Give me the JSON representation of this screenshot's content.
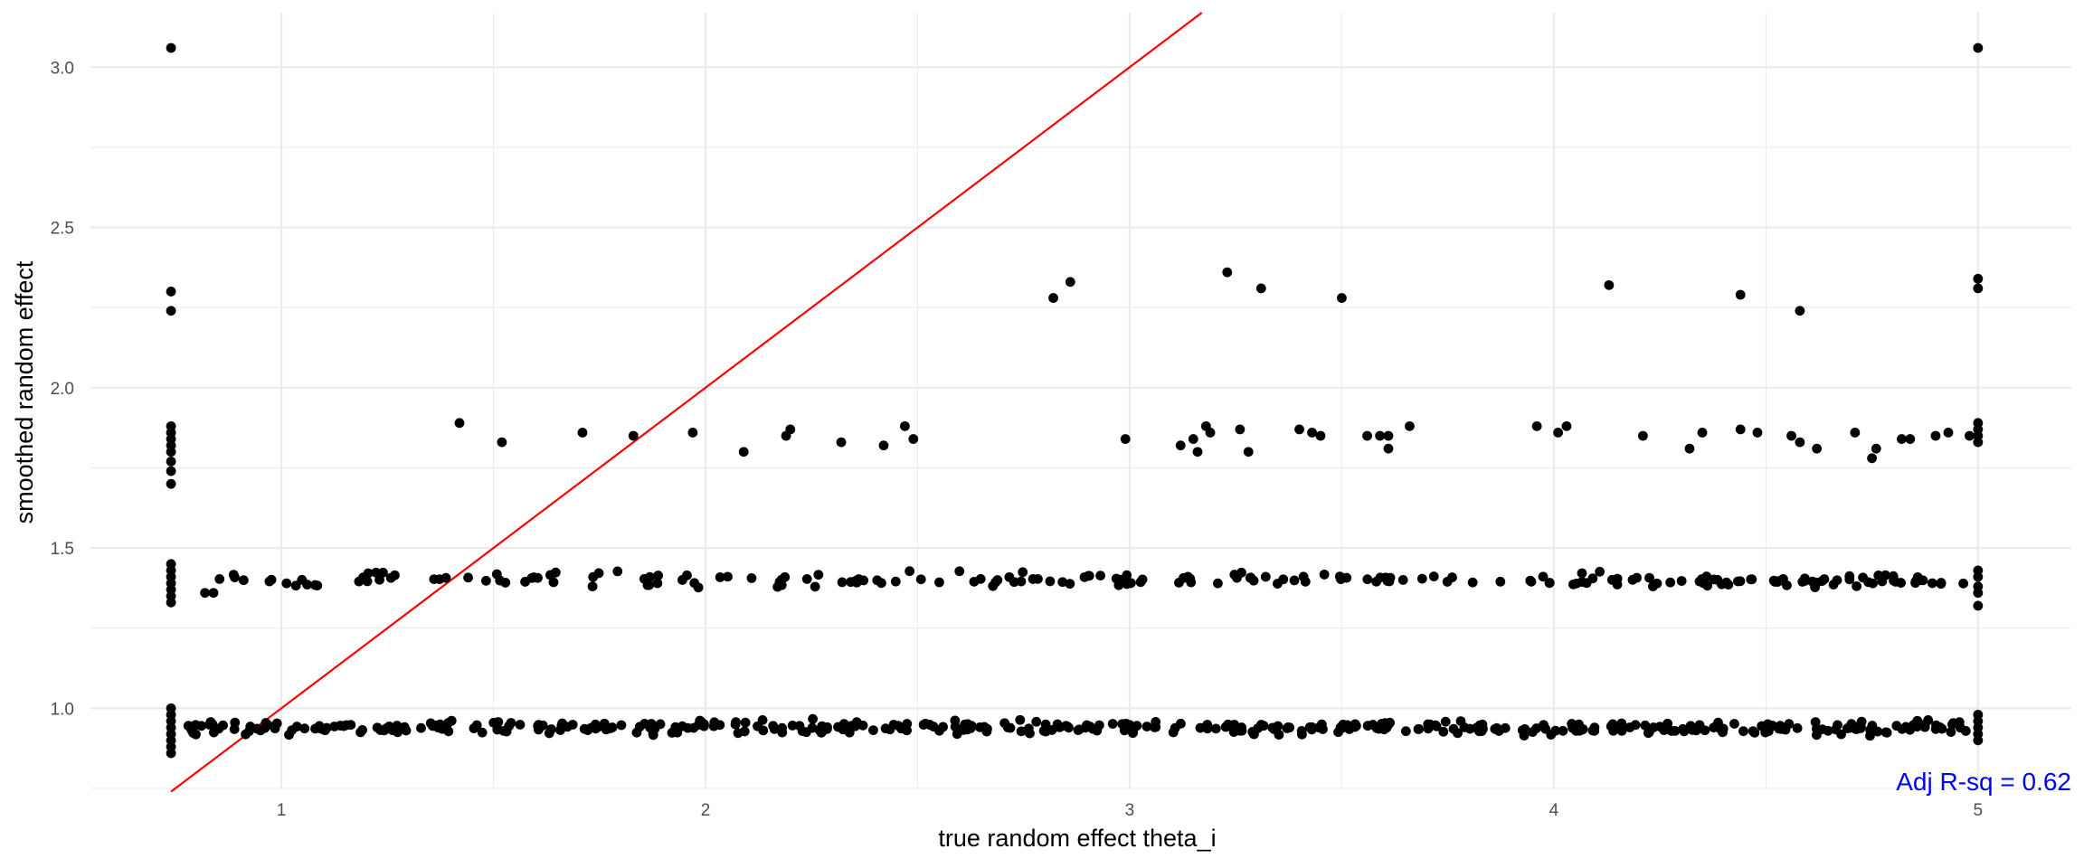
{
  "chart_data": {
    "type": "scatter",
    "title": "",
    "xlabel": "true random effect theta_i",
    "ylabel": "smoothed random effect",
    "xlim": [
      0.55,
      5.22
    ],
    "ylim": [
      0.75,
      3.17
    ],
    "x_ticks": [
      {
        "value": 1,
        "label": "1"
      },
      {
        "value": 2,
        "label": "2"
      },
      {
        "value": 3,
        "label": "3"
      },
      {
        "value": 4,
        "label": "4"
      },
      {
        "value": 5,
        "label": "5"
      }
    ],
    "y_ticks": [
      {
        "value": 1.0,
        "label": "1.0"
      },
      {
        "value": 1.5,
        "label": "1.5"
      },
      {
        "value": 2.0,
        "label": "2.0"
      },
      {
        "value": 2.5,
        "label": "2.5"
      },
      {
        "value": 3.0,
        "label": "3.0"
      }
    ],
    "grid": true,
    "reference_line": {
      "slope": 1,
      "intercept": 0,
      "color": "#ff0000"
    },
    "annotation": {
      "text": "Adj R-sq = 0.62",
      "color": "#0000ff",
      "placement": "bottom-right"
    },
    "point_color": "#000000",
    "clusters": [
      {
        "level": 0.94,
        "spread": 0.02,
        "x_start": 0.78,
        "x_end": 4.98,
        "count": 430
      },
      {
        "level": 1.4,
        "spread": 0.022,
        "x_start": 0.82,
        "x_end": 4.98,
        "count": 210
      }
    ],
    "points": [
      [
        0.74,
        3.06
      ],
      [
        5.0,
        3.06
      ],
      [
        0.74,
        2.3
      ],
      [
        0.74,
        2.24
      ],
      [
        2.82,
        2.28
      ],
      [
        2.86,
        2.33
      ],
      [
        3.23,
        2.36
      ],
      [
        3.31,
        2.31
      ],
      [
        3.5,
        2.28
      ],
      [
        4.13,
        2.32
      ],
      [
        4.44,
        2.29
      ],
      [
        4.58,
        2.24
      ],
      [
        5.0,
        2.34
      ],
      [
        5.0,
        2.31
      ],
      [
        0.74,
        1.88
      ],
      [
        0.74,
        1.86
      ],
      [
        0.74,
        1.84
      ],
      [
        0.74,
        1.82
      ],
      [
        0.74,
        1.8
      ],
      [
        0.74,
        1.77
      ],
      [
        0.74,
        1.74
      ],
      [
        0.74,
        1.7
      ],
      [
        1.42,
        1.89
      ],
      [
        1.52,
        1.83
      ],
      [
        1.71,
        1.86
      ],
      [
        1.83,
        1.85
      ],
      [
        1.97,
        1.86
      ],
      [
        2.09,
        1.8
      ],
      [
        2.19,
        1.85
      ],
      [
        2.2,
        1.87
      ],
      [
        2.32,
        1.83
      ],
      [
        2.42,
        1.82
      ],
      [
        2.47,
        1.88
      ],
      [
        2.49,
        1.84
      ],
      [
        2.99,
        1.84
      ],
      [
        3.12,
        1.82
      ],
      [
        3.15,
        1.84
      ],
      [
        3.16,
        1.8
      ],
      [
        3.18,
        1.88
      ],
      [
        3.19,
        1.86
      ],
      [
        3.26,
        1.87
      ],
      [
        3.28,
        1.8
      ],
      [
        3.4,
        1.87
      ],
      [
        3.43,
        1.86
      ],
      [
        3.45,
        1.85
      ],
      [
        3.56,
        1.85
      ],
      [
        3.59,
        1.85
      ],
      [
        3.61,
        1.81
      ],
      [
        3.61,
        1.85
      ],
      [
        3.66,
        1.88
      ],
      [
        3.96,
        1.88
      ],
      [
        4.01,
        1.86
      ],
      [
        4.03,
        1.88
      ],
      [
        4.21,
        1.85
      ],
      [
        4.32,
        1.81
      ],
      [
        4.35,
        1.86
      ],
      [
        4.44,
        1.87
      ],
      [
        4.48,
        1.86
      ],
      [
        4.56,
        1.85
      ],
      [
        4.58,
        1.83
      ],
      [
        4.62,
        1.81
      ],
      [
        4.71,
        1.86
      ],
      [
        4.75,
        1.78
      ],
      [
        4.76,
        1.81
      ],
      [
        4.82,
        1.84
      ],
      [
        4.84,
        1.84
      ],
      [
        4.9,
        1.85
      ],
      [
        4.93,
        1.86
      ],
      [
        4.98,
        1.85
      ],
      [
        5.0,
        1.89
      ],
      [
        5.0,
        1.87
      ],
      [
        5.0,
        1.85
      ],
      [
        5.0,
        1.83
      ],
      [
        0.74,
        1.45
      ],
      [
        0.74,
        1.43
      ],
      [
        0.74,
        1.41
      ],
      [
        0.74,
        1.39
      ],
      [
        0.74,
        1.37
      ],
      [
        0.74,
        1.35
      ],
      [
        0.74,
        1.33
      ],
      [
        0.82,
        1.36
      ],
      [
        0.84,
        1.36
      ],
      [
        5.0,
        1.43
      ],
      [
        5.0,
        1.41
      ],
      [
        5.0,
        1.38
      ],
      [
        5.0,
        1.36
      ],
      [
        5.0,
        1.32
      ],
      [
        0.74,
        1.0
      ],
      [
        0.74,
        0.98
      ],
      [
        0.74,
        0.96
      ],
      [
        0.74,
        0.94
      ],
      [
        0.74,
        0.92
      ],
      [
        0.74,
        0.9
      ],
      [
        0.74,
        0.88
      ],
      [
        0.74,
        0.86
      ],
      [
        5.0,
        0.98
      ],
      [
        5.0,
        0.96
      ],
      [
        5.0,
        0.94
      ],
      [
        5.0,
        0.92
      ],
      [
        5.0,
        0.9
      ]
    ]
  }
}
